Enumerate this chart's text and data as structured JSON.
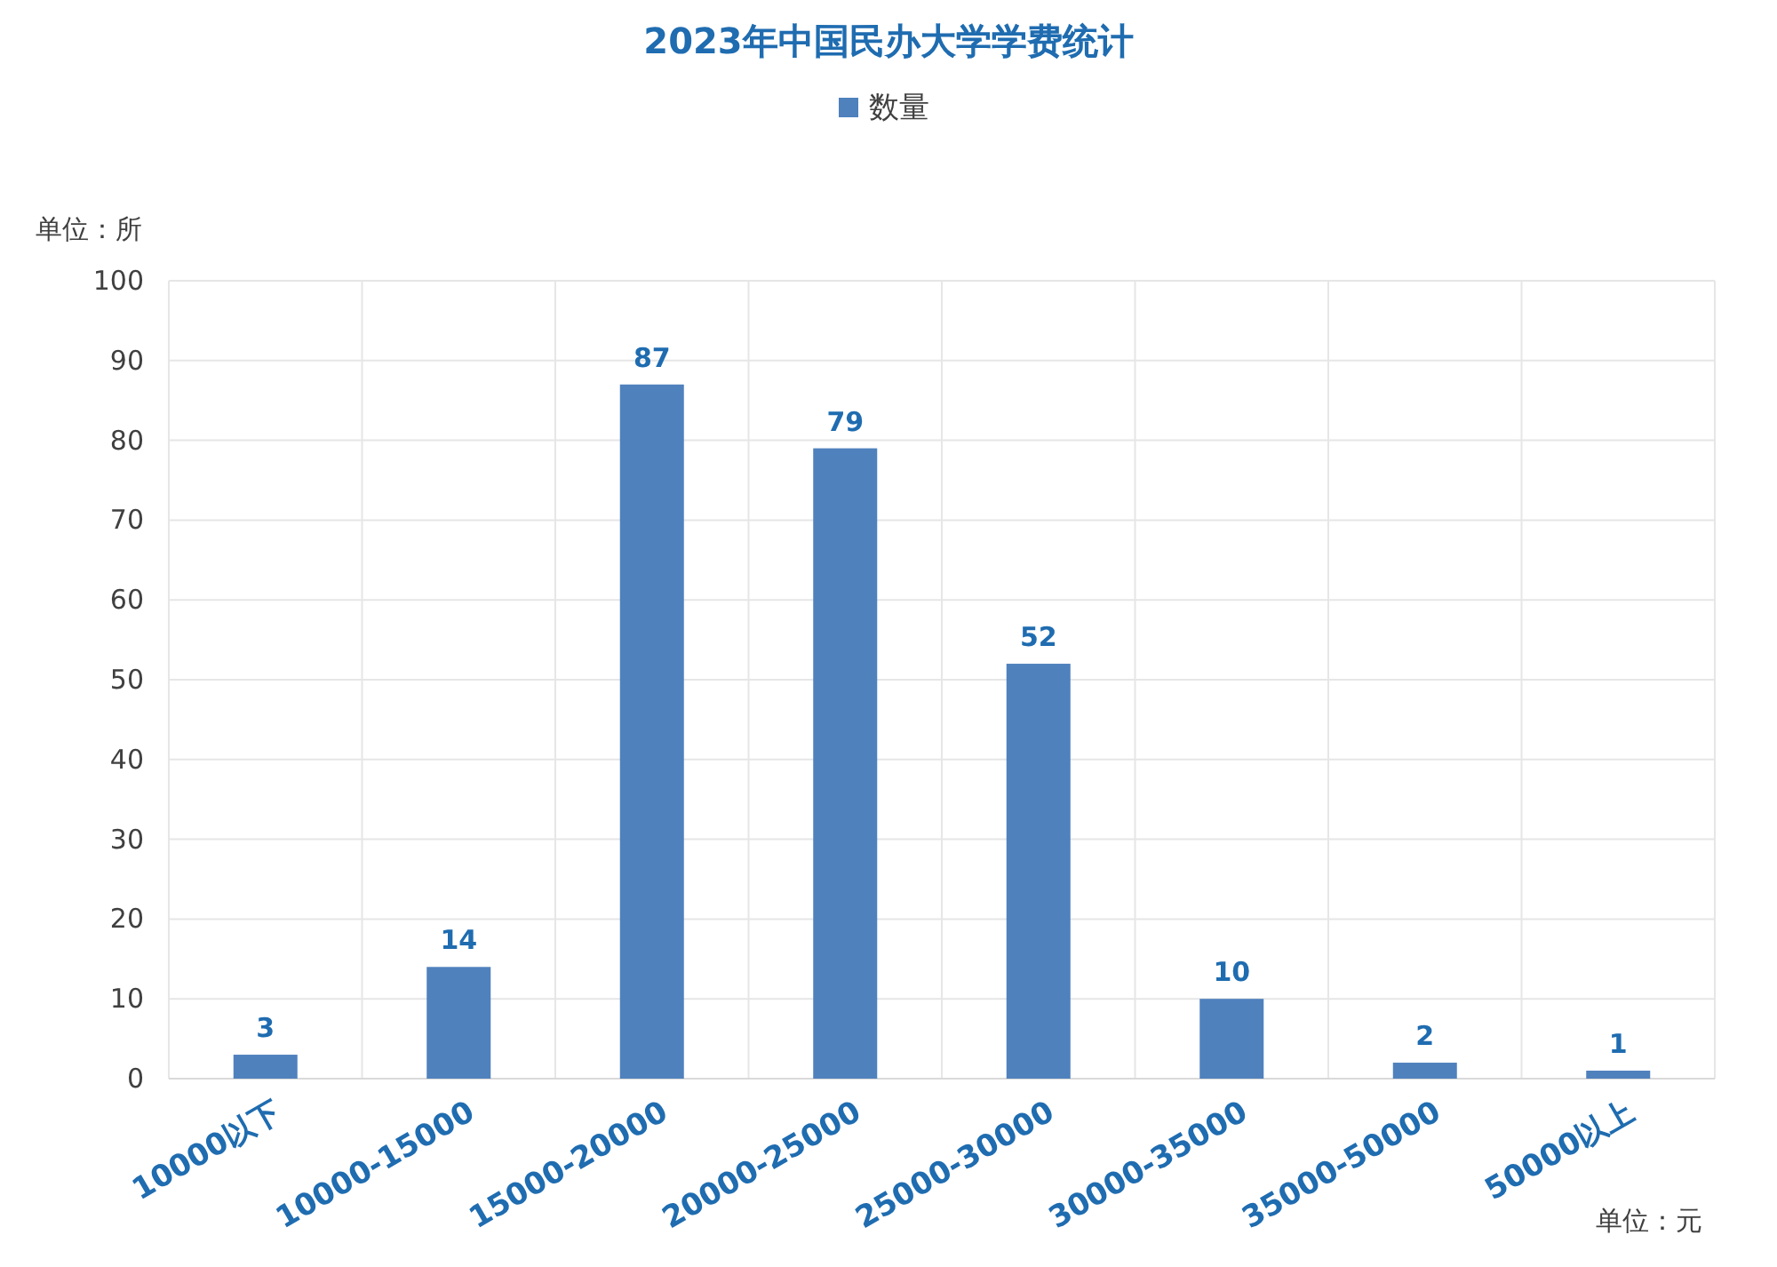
{
  "chart_data": {
    "type": "bar",
    "title": "2023年中国民办大学学费统计",
    "ylabel": "单位：所",
    "xlabel": "单位：元",
    "categories": [
      "10000以下",
      "10000-15000",
      "15000-20000",
      "20000-25000",
      "25000-30000",
      "30000-35000",
      "35000-50000",
      "50000以上"
    ],
    "series": [
      {
        "name": "数量",
        "color": "#4f81bd",
        "values": [
          3,
          14,
          87,
          79,
          52,
          10,
          2,
          1
        ]
      }
    ],
    "ylim": [
      0,
      100
    ],
    "yticks": [
      0,
      10,
      20,
      30,
      40,
      50,
      60,
      70,
      80,
      90,
      100
    ],
    "grid": true,
    "legend": "top",
    "data_labels": true
  }
}
